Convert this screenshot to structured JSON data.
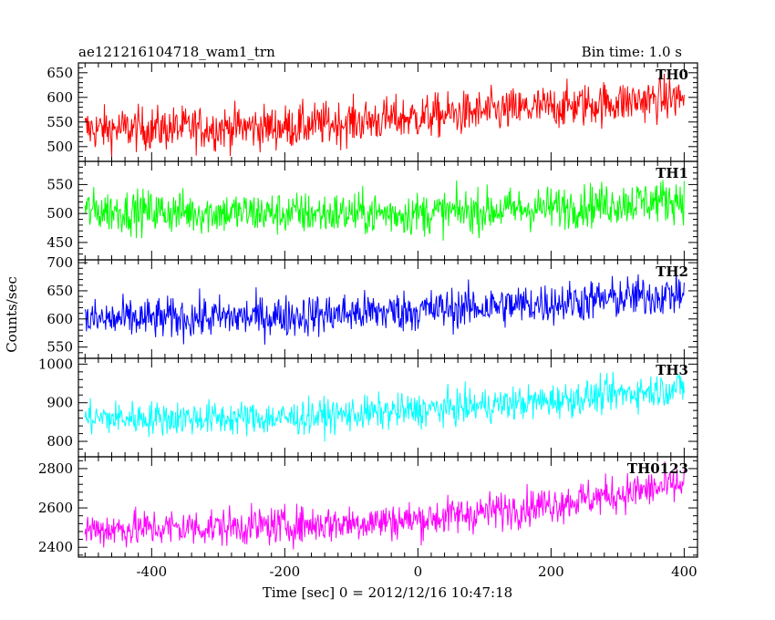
{
  "header": {
    "left": "ae121216104718_wam1_trn",
    "right": "Bin time: 1.0 s"
  },
  "chart_data": {
    "type": "line",
    "title": "ae121216104718_wam1_trn",
    "subtitle": "Bin time: 1.0 s",
    "xlabel": "Time [sec] 0 = 2012/12/16 10:47:18",
    "ylabel": "Counts/sec",
    "xlim": [
      -510,
      420
    ],
    "xticks": [
      -400,
      -200,
      0,
      200,
      400
    ],
    "x_sample": {
      "start": -500,
      "end": 400,
      "step": 1
    },
    "grid": false,
    "panels": [
      {
        "name": "TH0",
        "color": "#ff0000",
        "ylim": [
          470,
          670
        ],
        "yticks": [
          500,
          550,
          600,
          650
        ],
        "trend": [
          [
            -500,
            535
          ],
          [
            -200,
            540
          ],
          [
            0,
            560
          ],
          [
            200,
            580
          ],
          [
            400,
            600
          ]
        ],
        "noise": 30
      },
      {
        "name": "TH1",
        "color": "#00ff00",
        "ylim": [
          420,
          590
        ],
        "yticks": [
          450,
          500,
          550
        ],
        "trend": [
          [
            -500,
            505
          ],
          [
            -200,
            500
          ],
          [
            0,
            500
          ],
          [
            200,
            510
          ],
          [
            400,
            525
          ]
        ],
        "noise": 25
      },
      {
        "name": "TH2",
        "color": "#0000ff",
        "ylim": [
          530,
          705
        ],
        "yticks": [
          550,
          600,
          650,
          700
        ],
        "trend": [
          [
            -500,
            598
          ],
          [
            -200,
            605
          ],
          [
            0,
            615
          ],
          [
            200,
            628
          ],
          [
            400,
            645
          ]
        ],
        "noise": 25
      },
      {
        "name": "TH3",
        "color": "#00ffff",
        "ylim": [
          760,
          1015
        ],
        "yticks": [
          800,
          900,
          1000
        ],
        "trend": [
          [
            -500,
            860
          ],
          [
            -200,
            860
          ],
          [
            0,
            880
          ],
          [
            200,
            905
          ],
          [
            400,
            940
          ]
        ],
        "noise": 30
      },
      {
        "name": "TH0123",
        "color": "#ff00ff",
        "ylim": [
          2350,
          2860
        ],
        "yticks": [
          2400,
          2600,
          2800
        ],
        "trend": [
          [
            -500,
            2490
          ],
          [
            -200,
            2510
          ],
          [
            0,
            2540
          ],
          [
            200,
            2620
          ],
          [
            400,
            2720
          ]
        ],
        "noise": 65
      }
    ]
  }
}
